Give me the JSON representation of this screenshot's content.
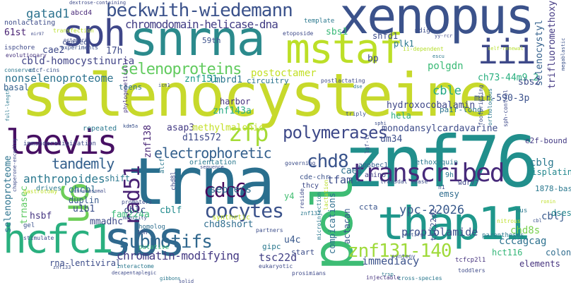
{
  "cloud": {
    "words": {
      "selenocysteine": {
        "text": "selenocysteine",
        "color": "#c7d92b"
      },
      "trna": {
        "text": "trna",
        "color": "#2a6f8e"
      },
      "znf76": {
        "text": "znf76",
        "color": "#218f8c"
      },
      "xenopus": {
        "text": "xenopus",
        "color": "#3b528b"
      },
      "snrna": {
        "text": "snrna",
        "color": "#2b8a8c"
      },
      "mstaf": {
        "text": "mstaf",
        "color": "#bcdf27"
      },
      "sph": {
        "text": "sph",
        "color": "#3f4789"
      },
      "sbs": {
        "text": "sbs",
        "color": "#30698e"
      },
      "thap11": {
        "text": "thap11",
        "color": "#1f978b"
      },
      "pol": {
        "text": "pol",
        "color": "#3dbc74"
      },
      "hcfc1": {
        "text": "hcfc1",
        "color": "#2ab07f"
      },
      "laevis": {
        "text": "laevis",
        "color": "#471063"
      },
      "u6": {
        "text": "u6",
        "color": "#6ece58"
      },
      "iii": {
        "text": "iii",
        "color": "#3e4989"
      },
      "beckwith": {
        "text": "beckwith-wiedemann",
        "color": "#3b528b"
      },
      "transcribed": {
        "text": "transcribed",
        "color": "#472a7a"
      },
      "polymerases": {
        "text": "polymerases",
        "color": "#3e4989"
      },
      "cdc6": {
        "text": "cdc6",
        "color": "#46085c"
      },
      "oocytes": {
        "text": "oocytes",
        "color": "#3b528b"
      },
      "submotifs": {
        "text": "submotifs",
        "color": "#31688e"
      },
      "znf131": {
        "text": "znf131-140",
        "color": "#9fda3a"
      },
      "zfp": {
        "text": "zfp",
        "color": "#a5db36"
      },
      "rad51": {
        "text": "rad51",
        "color": "#482173"
      },
      "chd8": {
        "text": "chd8",
        "color": "#3a548c"
      },
      "selenoproteins": {
        "text": "selenoproteins",
        "color": "#62cb5f"
      },
      "electrophoretic": {
        "text": "electrophoretic",
        "color": "#34608d"
      },
      "chromodomain": {
        "text": "chromodomain-helicase-dna",
        "color": "#433e85"
      },
      "gatad1": {
        "text": "gatad1",
        "color": "#2c728e"
      },
      "cbld": {
        "text": "cbld-homocystinuria",
        "color": "#414487"
      },
      "nonselenoproteome": {
        "text": "nonselenoproteome",
        "color": "#2c728e"
      },
      "tandemly": {
        "text": "tandemly",
        "color": "#34608d"
      },
      "anthropoides": {
        "text": "anthropoides",
        "color": "#2a788e"
      },
      "chromatin": {
        "text": "chromatin-modifying",
        "color": "#443983"
      },
      "propiolamide": {
        "text": "propiolamide",
        "color": "#3d4e8a"
      },
      "ypc": {
        "text": "ypc-22026",
        "color": "#38598c"
      },
      "monodansyl": {
        "text": "monodansylcardavarine",
        "color": "#3e4c8a"
      },
      "ch73": {
        "text": "ch73-44m9.2",
        "color": "#29af7f"
      },
      "tsc22d": {
        "text": "tsc22d",
        "color": "#424086"
      },
      "immediacy": {
        "text": "immediacy",
        "color": "#3b528b"
      },
      "cccagcag": {
        "text": "cccagcag",
        "color": "#2d718e"
      },
      "tfam": {
        "text": "tfam",
        "color": "#3d4d8a"
      },
      "fam224a": {
        "text": "fam224a",
        "color": "#38b977"
      },
      "sepsecs": {
        "text": "sepsecs",
        "color": "#2e6e8e"
      },
      "selenoproteome": {
        "text": "selenoproteome",
        "color": "#2c738e"
      },
      "postoctamer": {
        "text": "postoctamer",
        "color": "#c2df23"
      },
      "cble": {
        "text": "cble",
        "color": "#22a884"
      },
      "polgdn": {
        "text": "polgdn",
        "color": "#3aba76"
      },
      "selenocystyl": {
        "text": "selenocystyl",
        "color": "#34618d"
      },
      "trifluoromethoxy": {
        "text": "trifluoromethoxy",
        "color": "#443a83"
      },
      "znf151": {
        "text": "znf151",
        "color": "#1e9c89"
      },
      "lmbrd1": {
        "text": "lmbrd1",
        "color": "#2a778e"
      },
      "asap3": {
        "text": "asap3",
        "color": "#443b84"
      },
      "methylmalonic": {
        "text": "methylmalonic",
        "color": "#c2df23"
      },
      "d11s572": {
        "text": "d11s572",
        "color": "#3e4a89"
      },
      "znf138": {
        "text": "znf138",
        "color": "#482576"
      },
      "znf143a": {
        "text": "znf143a",
        "color": "#25ab82"
      },
      "harbor": {
        "text": "harbor",
        "color": "#46337e"
      },
      "cblg": {
        "text": "cblg",
        "color": "#2a788e"
      },
      "cblc": {
        "text": "cblc",
        "color": "#3b528b"
      },
      "cblf": {
        "text": "cblf",
        "color": "#228b8d"
      },
      "cblj": {
        "text": "cblj",
        "color": "#38598c"
      },
      "chd8s": {
        "text": "chd8s",
        "color": "#7ad151"
      },
      "chd8short": {
        "text": "chd8short",
        "color": "#2e6d8e"
      },
      "hydroxocobalamin": {
        "text": "hydroxocobalamin",
        "color": "#3f4788"
      },
      "mir590": {
        "text": "mir-590-3p",
        "color": "#3b518b"
      },
      "sbs2": {
        "text": "sbs2",
        "color": "#3e4c8a"
      },
      "sbs1": {
        "text": "sbs1",
        "color": "#38b977"
      },
      "cae1": {
        "text": "cae1",
        "color": "#2d708e"
      },
      "cae2": {
        "text": "cae2",
        "color": "#3e4989"
      },
      "um34": {
        "text": "um34",
        "color": "#3d4e8a"
      },
      "bp": {
        "text": "bp",
        "color": "#3f4889"
      },
      "e2fbound": {
        "text": "e2f-bound",
        "color": "#443b84"
      },
      "cisplatin": {
        "text": "cisplatin",
        "color": "#23888e"
      },
      "s1878": {
        "text": "1878-base",
        "color": "#2a788e"
      },
      "mmadhc": {
        "text": "mmadhc",
        "color": "#3e4a89"
      },
      "ohcbl": {
        "text": "ohcbl",
        "color": "#2e6e8e"
      },
      "u1b1": {
        "text": "u1b1",
        "color": "#3c4f8a"
      },
      "hsbf": {
        "text": "hsbf",
        "color": "#453581"
      },
      "trnasec": {
        "text": "trnasec",
        "color": "#5ec962"
      },
      "duplin": {
        "text": "duplin",
        "color": "#38598c"
      },
      "u4c": {
        "text": "u4c",
        "color": "#38588c"
      },
      "compications": {
        "text": "compications",
        "color": "#2e6e8e"
      },
      "actacan": {
        "text": "actacan",
        "color": "#38598c"
      },
      "rnalentiviral": {
        "text": "rna-lentiviral",
        "color": "#3d4d8a"
      },
      "hct116": {
        "text": "hct116",
        "color": "#35b779"
      },
      "elements": {
        "text": "elements",
        "color": "#46337e"
      },
      "colon": {
        "text": "colon",
        "color": "#2f6c8e"
      },
      "dses": {
        "text": "dses",
        "color": "#24878e"
      },
      "c61st": {
        "text": "61st",
        "color": "#482173"
      },
      "c17h": {
        "text": "17h",
        "color": "#3e4a89"
      },
      "c59th": {
        "text": "59th",
        "color": "#3b518b"
      },
      "plk1": {
        "text": "plk1",
        "color": "#2a788e"
      },
      "shfd1": {
        "text": "shfd1",
        "color": "#3e4c8a"
      },
      "basal": {
        "text": "basal",
        "color": "#34608d"
      },
      "teens": {
        "text": "teens",
        "color": "#2d718e"
      },
      "circuitry": {
        "text": "circuitry",
        "color": "#2b748e"
      },
      "hela": {
        "text": "hela",
        "color": "#27ad81"
      },
      "emsy": {
        "text": "emsy",
        "color": "#2f6c8e"
      },
      "y4": {
        "text": "y4",
        "color": "#42be71"
      },
      "tscd22": {
        "text": "tsc22d2",
        "color": "#3e4c8a"
      },
      "ccta": {
        "text": "ccta",
        "color": "#3a548c"
      },
      "gipc": {
        "text": "gipc",
        "color": "#2a788e"
      },
      "start": {
        "text": "start",
        "color": "#3d4e8a"
      },
      "shift": {
        "text": "shift",
        "color": "#2a778e"
      },
      "cde": {
        "text": "cde-chr",
        "color": "#3b528b"
      },
      "thcy": {
        "text": "thcy",
        "color": "#3e4a89"
      },
      "repeated": {
        "text": "repeated",
        "color": "#2a788e"
      },
      "wdr77": {
        "text": "wdr77",
        "color": "#3f4889"
      },
      "l9h": {
        "text": "9h",
        "color": "#2a788e"
      },
      "amino": {
        "text": "amino",
        "color": "#423f85"
      },
      "apobec1": {
        "text": "apobec1",
        "color": "#34608d"
      },
      "ethoxyquin": {
        "text": "ethoxyquin",
        "color": "#2a788e"
      },
      "pairlong": {
        "text": "pair-long",
        "color": "#2b748e"
      },
      "abcd4": {
        "text": "abcd4",
        "color": "#482878"
      },
      "nonlactating": {
        "text": "nonlactating",
        "color": "#3e4c8a"
      },
      "ceased": {
        "text": "ceased",
        "color": "#3d4e8a"
      },
      "experiments": {
        "text": "experiments",
        "color": "#3b528b"
      },
      "ispchore": {
        "text": "ispchore",
        "color": "#3e4989"
      },
      "evolutionary": {
        "text": "evolutionary",
        "color": "#46337e"
      },
      "template": {
        "text": "template",
        "color": "#2a788e"
      },
      "etoposide": {
        "text": "etoposide",
        "color": "#3e4a89"
      },
      "mdig": {
        "text": "mdig",
        "color": "#3d4e8a"
      },
      "iidep": {
        "text": "ii-dependent",
        "color": "#b5de2b"
      },
      "conserved": {
        "text": "conserved",
        "color": "#2a788e"
      },
      "phylogenetically": {
        "text": "phylogenetically",
        "color": "#46337e"
      },
      "postlactating": {
        "text": "postlactating",
        "color": "#3e4a89"
      },
      "immunoprecipitation": {
        "text": "immunoprecipitation",
        "color": "#3e4a89"
      },
      "orientation": {
        "text": "orientation",
        "color": "#2a788e"
      },
      "governing": {
        "text": "governing",
        "color": "#3d4e8a"
      },
      "drives": {
        "text": "drives",
        "color": "#2a788e"
      },
      "promoters": {
        "text": "promoters",
        "color": "#3e4a89"
      },
      "synthetic": {
        "text": "synthetic",
        "color": "#bddf26"
      },
      "homolog": {
        "text": "homolog",
        "color": "#2e6e8e"
      },
      "putative": {
        "text": "putative",
        "color": "#3aba76"
      },
      "interactome": {
        "text": "interactome",
        "color": "#2a788e"
      },
      "partners": {
        "text": "partners",
        "color": "#3d4e8a"
      },
      "eukaryotic": {
        "text": "eukaryotic",
        "color": "#3e4a89"
      },
      "microinjection": {
        "text": "microinjection",
        "color": "#2a788e"
      },
      "transdal": {
        "text": "transdal lease",
        "color": "#3d4e8a"
      },
      "lactation": {
        "text": "lactation",
        "color": "#b8de29"
      },
      "parentheses": {
        "text": "parentheses",
        "color": "#2a788e"
      },
      "synteny": {
        "text": "synteny",
        "color": "#3b528b"
      },
      "prosimians": {
        "text": "prosimians",
        "color": "#3e4989"
      },
      "injectable": {
        "text": "injectable",
        "color": "#46337e"
      },
      "crossspecies": {
        "text": "cross-species",
        "color": "#2a788e"
      },
      "toddlers": {
        "text": "toddlers",
        "color": "#3e4a89"
      },
      "tcfcp": {
        "text": "tcfcp2l1",
        "color": "#46337e"
      },
      "hus": {
        "text": "hus",
        "color": "#2a788e"
      },
      "gel": {
        "text": "gel",
        "color": "#3b528b"
      },
      "stimulate": {
        "text": "stimulate",
        "color": "#3e4a89"
      },
      "gastrotomy": {
        "text": "gastrotomy",
        "color": "#bddf26"
      },
      "znf133": {
        "text": "znf133",
        "color": "#3d4e8a"
      },
      "znf132": {
        "text": "znf132",
        "color": "#2a788e"
      },
      "solid": {
        "text": "solid",
        "color": "#3e4989"
      },
      "motifs": {
        "text": "motifs",
        "color": "#3b528b"
      },
      "dextrose": {
        "text": "dextrose-containing",
        "color": "#3e4a89"
      },
      "transfection": {
        "text": "transfection",
        "color": "#b8de29"
      },
      "footprinting": {
        "text": "footprinting",
        "color": "#3d4e8a"
      },
      "orthologous": {
        "text": "orthologous",
        "color": "#2a788e"
      },
      "sphcontrol": {
        "text": "sph-control",
        "color": "#3e4a89"
      },
      "megablastic": {
        "text": "megablastic",
        "color": "#3b528b"
      },
      "yfcr": {
        "text": "yy-rcr",
        "color": "#3e4a89"
      },
      "selfrenewal": {
        "text": "self-renewal",
        "color": "#b5de2b"
      },
      "lfsf": {
        "text": "lgf-lr",
        "color": "#3d4e8a"
      },
      "triply": {
        "text": "triply",
        "color": "#3b528b"
      },
      "trsp": {
        "text": "trsp",
        "color": "#2a788e"
      },
      "reside": {
        "text": "reside",
        "color": "#3e4a89"
      },
      "sequence": {
        "text": "sequence",
        "color": "#3d4e8a"
      },
      "mobility": {
        "text": "mobility",
        "color": "#3b528b"
      },
      "chromosomal": {
        "text": "chromosomal",
        "color": "#3e4a89"
      },
      "dse": {
        "text": "dse",
        "color": "#2a788e"
      },
      "ronin": {
        "text": "ronin",
        "color": "#bddf26"
      },
      "octameric": {
        "text": "octameric",
        "color": "#3e4a89"
      },
      "ctcfcins": {
        "text": "ctcf-cins",
        "color": "#3b528b"
      },
      "fulllength": {
        "text": "full-length",
        "color": "#2a788e"
      },
      "chaperone": {
        "text": "chaperone-encoding",
        "color": "#3e4a89"
      },
      "icn1": {
        "text": "icn1",
        "color": "#3d4e8a"
      },
      "kdm5a": {
        "text": "kdm5a",
        "color": "#3b528b"
      },
      "alcf": {
        "text": "alcf",
        "color": "#2a788e"
      },
      "chd8l": {
        "text": "chd8l",
        "color": "#3e4a89"
      },
      "sphi": {
        "text": "sphi",
        "color": "#3d4e8a"
      },
      "h1": {
        "text": "h1",
        "color": "#3b528b"
      },
      "mir97": {
        "text": "mir97",
        "color": "#3e4a89"
      },
      "escu": {
        "text": "escu",
        "color": "#2a788e"
      },
      "nitrous": {
        "text": "nitrous",
        "color": "#bddf26"
      },
      "decapentaplegic": {
        "text": "decapentaplegic",
        "color": "#3e4a89"
      },
      "gibbons": {
        "text": "gibbons",
        "color": "#2a788e"
      },
      "tenh": {
        "text": "10h",
        "color": "#3d4e8a"
      },
      "cbl": {
        "text": "cbl",
        "color": "#3b528b"
      }
    }
  }
}
